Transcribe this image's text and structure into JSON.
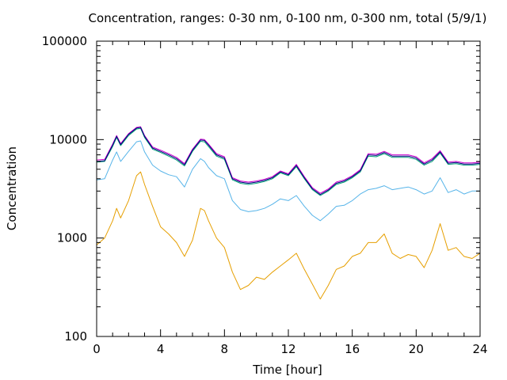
{
  "chart_data": {
    "type": "line",
    "title": "Concentration, ranges: 0-30 nm, 0-100 nm, 0-300 nm, total (5/9/1)",
    "xlabel": "Time [hour]",
    "ylabel": "Concentration",
    "xlim": [
      0,
      24
    ],
    "ylim": [
      100,
      100000
    ],
    "yscale": "log",
    "x_ticks": [
      0,
      4,
      8,
      12,
      16,
      20,
      24
    ],
    "x_tick_labels": [
      "0",
      "4",
      "8",
      "12",
      "16",
      "20",
      "24"
    ],
    "y_ticks": [
      100,
      1000,
      10000,
      100000
    ],
    "y_tick_labels": [
      "100",
      "1000",
      "10000",
      "100000"
    ],
    "grid": false,
    "legend": "none",
    "x": [
      0,
      0.5,
      1,
      1.25,
      1.5,
      2,
      2.5,
      2.75,
      3,
      3.5,
      4,
      4.5,
      5,
      5.5,
      6,
      6.5,
      6.75,
      7,
      7.5,
      8,
      8.5,
      9,
      9.5,
      10,
      10.5,
      11,
      11.5,
      12,
      12.5,
      13,
      13.5,
      14,
      14.5,
      15,
      15.5,
      16,
      16.5,
      17,
      17.5,
      18,
      18.5,
      19,
      19.5,
      20,
      20.5,
      21,
      21.5,
      22,
      22.5,
      23,
      23.5,
      24
    ],
    "series": [
      {
        "color": "#e69f00",
        "values": [
          850,
          1000,
          1500,
          2000,
          1600,
          2400,
          4300,
          4700,
          3500,
          2100,
          1300,
          1100,
          900,
          650,
          950,
          2000,
          1900,
          1500,
          1000,
          800,
          450,
          300,
          330,
          400,
          380,
          450,
          520,
          600,
          700,
          480,
          340,
          240,
          330,
          480,
          520,
          650,
          700,
          900,
          900,
          1100,
          700,
          620,
          680,
          650,
          500,
          750,
          1400,
          750,
          800,
          650,
          620,
          700
        ]
      },
      {
        "color": "#56b4e9",
        "values": [
          3900,
          4000,
          6200,
          7500,
          6000,
          7600,
          9500,
          9700,
          7500,
          5500,
          4800,
          4400,
          4200,
          3300,
          5000,
          6400,
          6000,
          5200,
          4300,
          4000,
          2400,
          1950,
          1850,
          1900,
          2000,
          2200,
          2500,
          2400,
          2700,
          2100,
          1700,
          1500,
          1750,
          2100,
          2150,
          2400,
          2800,
          3100,
          3200,
          3400,
          3100,
          3200,
          3300,
          3100,
          2800,
          3000,
          4100,
          2900,
          3100,
          2800,
          3000,
          3000
        ]
      },
      {
        "color": "#009e73",
        "values": [
          5900,
          6000,
          8500,
          10500,
          8700,
          11000,
          12800,
          13000,
          10500,
          8000,
          7400,
          6800,
          6200,
          5400,
          7600,
          9600,
          9500,
          8500,
          6800,
          6300,
          3900,
          3600,
          3500,
          3600,
          3750,
          4000,
          4600,
          4300,
          5300,
          4000,
          3100,
          2700,
          3000,
          3500,
          3700,
          4100,
          4700,
          6800,
          6700,
          7200,
          6600,
          6600,
          6600,
          6300,
          5500,
          6000,
          7300,
          5600,
          5700,
          5500,
          5500,
          5600
        ]
      },
      {
        "color": "#cc00cc",
        "values": [
          6200,
          6300,
          9000,
          11000,
          9100,
          11500,
          13300,
          13500,
          11000,
          8400,
          7800,
          7200,
          6600,
          5700,
          8000,
          10100,
          10000,
          9000,
          7200,
          6700,
          4100,
          3800,
          3700,
          3800,
          3950,
          4200,
          4800,
          4500,
          5600,
          4200,
          3250,
          2850,
          3150,
          3700,
          3900,
          4300,
          4950,
          7200,
          7100,
          7600,
          7000,
          7000,
          7000,
          6700,
          5800,
          6400,
          7700,
          5900,
          6000,
          5800,
          5800,
          5900
        ]
      },
      {
        "color": "#000080",
        "values": [
          6000,
          6100,
          8800,
          10800,
          8900,
          11300,
          13100,
          13300,
          10800,
          8200,
          7600,
          7000,
          6400,
          5550,
          7800,
          9900,
          9800,
          8800,
          7000,
          6500,
          4000,
          3700,
          3600,
          3700,
          3850,
          4100,
          4700,
          4400,
          5450,
          4100,
          3170,
          2770,
          3070,
          3600,
          3800,
          4200,
          4820,
          7000,
          6900,
          7400,
          6800,
          6800,
          6800,
          6500,
          5650,
          6200,
          7500,
          5750,
          5850,
          5650,
          5650,
          5750
        ]
      }
    ]
  }
}
